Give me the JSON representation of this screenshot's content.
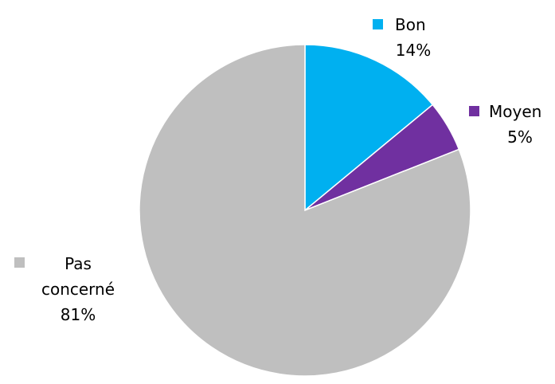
{
  "chart_data": {
    "type": "pie",
    "title": "",
    "start_angle_deg": 0,
    "direction": "clockwise",
    "slices": [
      {
        "label": "Bon",
        "value": 14,
        "value_label": "14%",
        "color": "#00b0f0",
        "legend_key_color": "#00b0f0"
      },
      {
        "label": "Moyen",
        "value": 5,
        "value_label": "5%",
        "color": "#7030a0",
        "legend_key_color": "#7030a0"
      },
      {
        "label": "Pas concerné",
        "value": 81,
        "value_label": "81%",
        "color": "#bfbfbf",
        "legend_key_color": "#bfbfbf",
        "label_lines": [
          "Pas",
          "concerné"
        ]
      }
    ]
  }
}
